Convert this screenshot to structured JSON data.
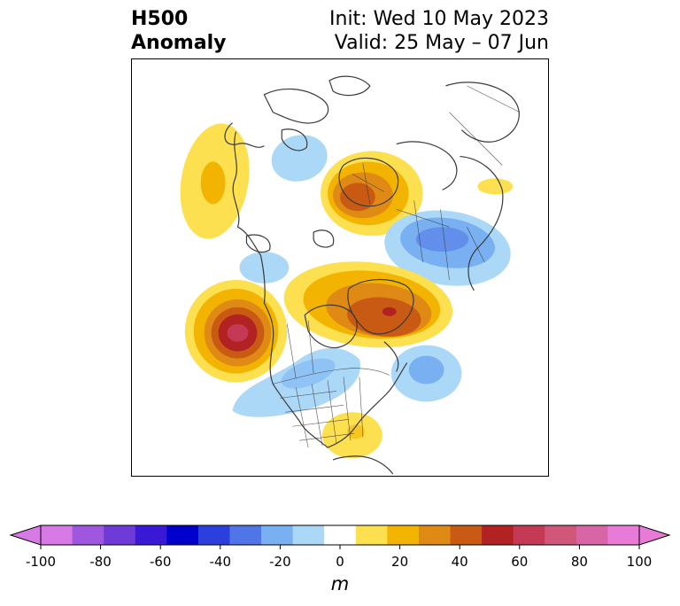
{
  "title": {
    "left_line1": "H500",
    "left_line2": "Anomaly",
    "right_line1": "Init: Wed 10 May 2023",
    "right_line2": "Valid: 25 May – 07 Jun"
  },
  "colorbar": {
    "unit": "m",
    "ticks": [
      "-100",
      "-80",
      "-60",
      "-40",
      "-20",
      "0",
      "20",
      "40",
      "60",
      "80",
      "100"
    ],
    "levels": [
      -100,
      -90,
      -80,
      -70,
      -60,
      -50,
      -40,
      -30,
      -20,
      -10,
      10,
      20,
      30,
      40,
      50,
      60,
      70,
      80,
      90,
      100
    ],
    "colors": [
      "#d77ae6",
      "#a057e0",
      "#6e3bd8",
      "#3a19d6",
      "#0000cc",
      "#2b3fdc",
      "#5075e6",
      "#78b0f2",
      "#acd8f8",
      "#ffffff",
      "#fde050",
      "#f2b400",
      "#df8a14",
      "#c85a14",
      "#b22222",
      "#c43a55",
      "#d0567a",
      "#d866a6",
      "#e87ad8"
    ],
    "under_color": "#d77ae6",
    "over_color": "#e87ad8"
  },
  "map": {
    "projection": "north-polar-stereographic",
    "anomalies": [
      {
        "name": "ridge-alaska",
        "peak": 20
      },
      {
        "name": "trough-northern-canada",
        "peak": -20
      },
      {
        "name": "ridge-barents-sea",
        "peak": 40
      },
      {
        "name": "trough-western-siberia",
        "peak": -30
      },
      {
        "name": "ridge-greenland",
        "peak": 50
      },
      {
        "name": "ridge-northeast-pacific",
        "peak": 70
      },
      {
        "name": "trough-north-atlantic",
        "peak": -30
      },
      {
        "name": "trough-central-canada-us",
        "peak": -20
      },
      {
        "name": "ridge-southeast-us",
        "peak": 20
      }
    ]
  }
}
